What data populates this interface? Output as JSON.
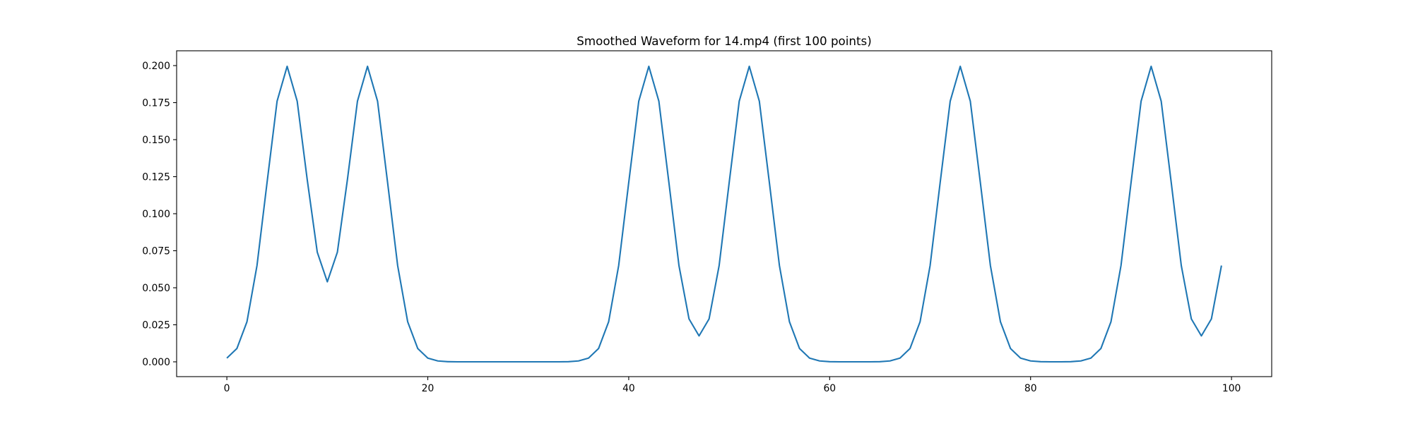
{
  "chart_data": {
    "type": "line",
    "title": "Smoothed Waveform for 14.mp4 (first 100 points)",
    "xlabel": "",
    "ylabel": "",
    "xlim": [
      -5,
      104
    ],
    "ylim": [
      -0.01,
      0.21
    ],
    "xticks": [
      0,
      20,
      40,
      60,
      80,
      100
    ],
    "xtick_labels": [
      "0",
      "20",
      "40",
      "60",
      "80",
      "100"
    ],
    "yticks": [
      0.0,
      0.025,
      0.05,
      0.075,
      0.1,
      0.125,
      0.15,
      0.175,
      0.2
    ],
    "ytick_labels": [
      "0.000",
      "0.025",
      "0.050",
      "0.075",
      "0.100",
      "0.125",
      "0.150",
      "0.175",
      "0.200"
    ],
    "grid": false,
    "legend": "none",
    "series": [
      {
        "color": "#1f77b4",
        "x": [
          0,
          1,
          2,
          3,
          4,
          5,
          6,
          7,
          8,
          9,
          10,
          11,
          12,
          13,
          14,
          15,
          16,
          17,
          18,
          19,
          20,
          21,
          22,
          23,
          24,
          25,
          26,
          27,
          28,
          29,
          30,
          31,
          32,
          33,
          34,
          35,
          36,
          37,
          38,
          39,
          40,
          41,
          42,
          43,
          44,
          45,
          46,
          47,
          48,
          49,
          50,
          51,
          52,
          53,
          54,
          55,
          56,
          57,
          58,
          59,
          60,
          61,
          62,
          63,
          64,
          65,
          66,
          67,
          68,
          69,
          70,
          71,
          72,
          73,
          74,
          75,
          76,
          77,
          78,
          79,
          80,
          81,
          82,
          83,
          84,
          85,
          86,
          87,
          88,
          89,
          90,
          91,
          92,
          93,
          94,
          95,
          96,
          97,
          98,
          99
        ],
        "y": [
          0.0025,
          0.009,
          0.027,
          0.065,
          0.121,
          0.176,
          0.1995,
          0.176,
          0.123,
          0.074,
          0.054,
          0.074,
          0.123,
          0.176,
          0.1995,
          0.176,
          0.121,
          0.065,
          0.027,
          0.009,
          0.0025,
          0.0006,
          0.0001,
          0.0,
          0.0,
          0.0,
          0.0,
          0.0,
          0.0,
          0.0,
          0.0,
          0.0,
          0.0,
          0.0,
          0.0001,
          0.0006,
          0.0025,
          0.009,
          0.027,
          0.065,
          0.121,
          0.176,
          0.1995,
          0.176,
          0.121,
          0.065,
          0.029,
          0.0175,
          0.029,
          0.065,
          0.121,
          0.176,
          0.1995,
          0.176,
          0.121,
          0.065,
          0.027,
          0.009,
          0.0025,
          0.0006,
          0.0001,
          0.0,
          0.0,
          0.0,
          0.0,
          0.0001,
          0.0006,
          0.0025,
          0.009,
          0.027,
          0.065,
          0.121,
          0.176,
          0.1995,
          0.176,
          0.121,
          0.065,
          0.027,
          0.009,
          0.0025,
          0.0006,
          0.0001,
          0.0,
          0.0,
          0.0001,
          0.0006,
          0.0025,
          0.009,
          0.027,
          0.065,
          0.121,
          0.176,
          0.1995,
          0.176,
          0.121,
          0.065,
          0.029,
          0.0175,
          0.029,
          0.065
        ]
      }
    ]
  }
}
